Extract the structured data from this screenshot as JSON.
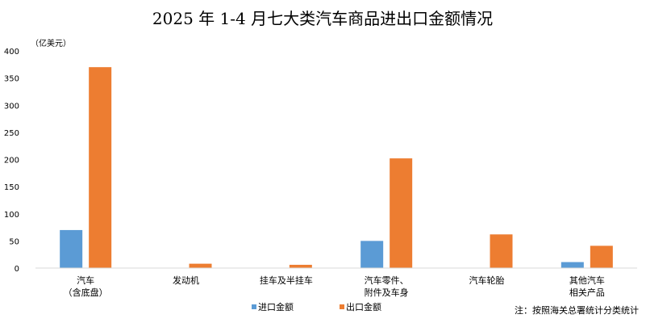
{
  "chart_data": {
    "type": "bar",
    "title": "2025 年 1-4 月七大类汽车商品进出口金额情况",
    "ylabel": "（亿美元）",
    "ylim": [
      0,
      400
    ],
    "yticks": [
      0,
      50,
      100,
      150,
      200,
      250,
      300,
      350,
      400
    ],
    "categories": [
      [
        "汽车",
        "（含底盘）"
      ],
      [
        "发动机"
      ],
      [
        "挂车及半挂车"
      ],
      [
        "汽车零件、",
        "附件及车身"
      ],
      [
        "汽车轮胎"
      ],
      [
        "其他汽车",
        "相关产品"
      ]
    ],
    "series": [
      {
        "name": "进口金额",
        "color": "#5B9BD5",
        "values": [
          70,
          0,
          0,
          50,
          0,
          11
        ]
      },
      {
        "name": "出口金额",
        "color": "#ED7D31",
        "values": [
          370,
          8,
          6,
          202,
          62,
          41
        ]
      }
    ],
    "grid": false,
    "legend_position": "bottom",
    "note": "注：按照海关总署统计分类统计"
  }
}
